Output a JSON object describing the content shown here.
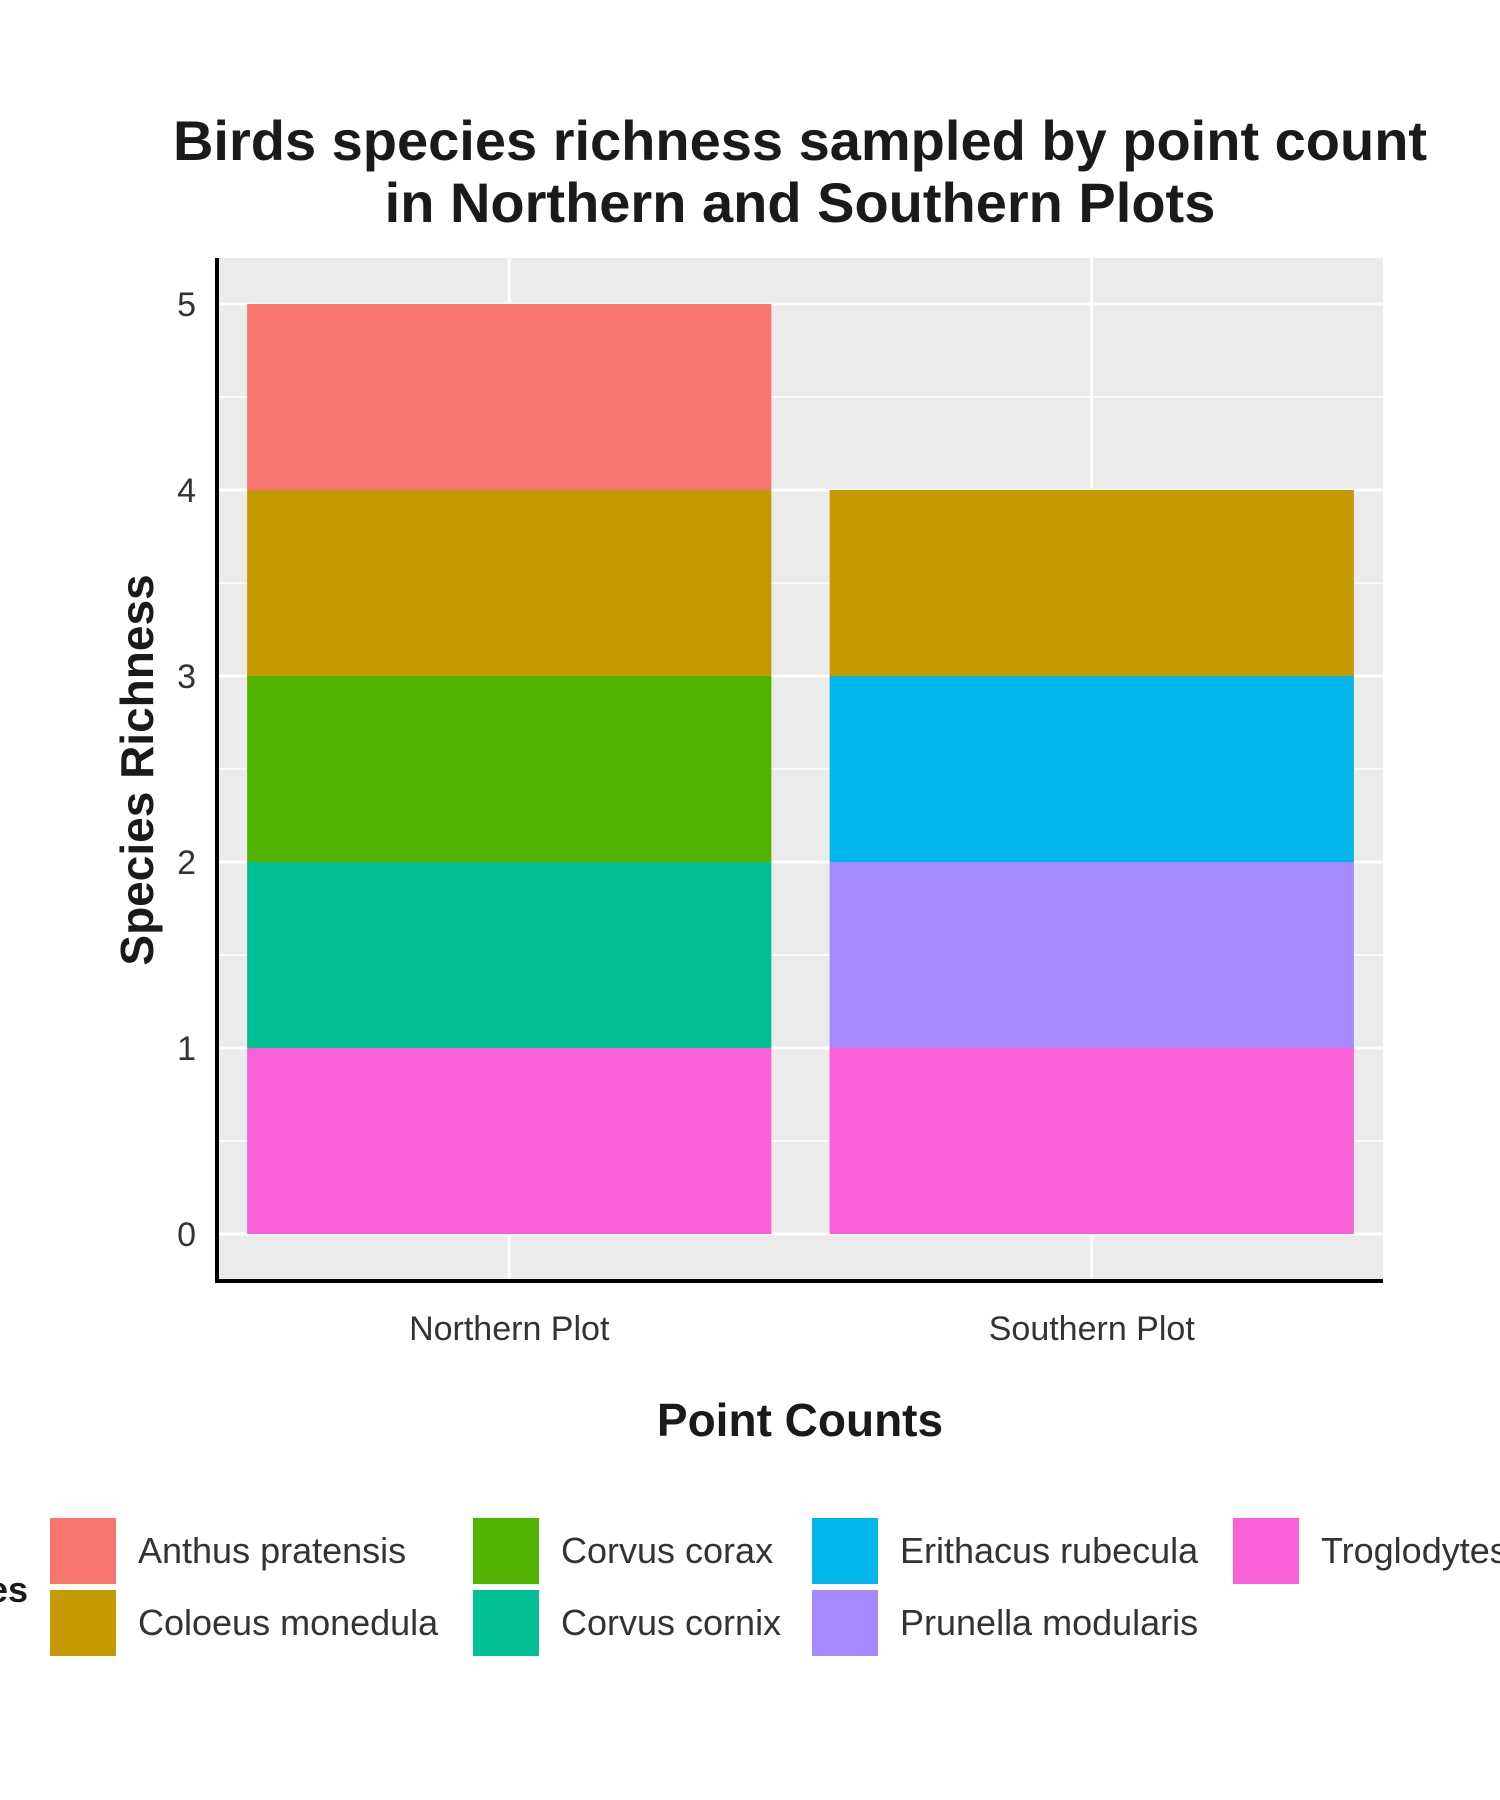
{
  "chart_data": {
    "type": "bar",
    "stacked": true,
    "title_line1": "Birds species richness sampled by point count",
    "title_line2": "in Northern and Southern Plots",
    "xlabel": "Point Counts",
    "ylabel": "Species Richness",
    "categories": [
      "Northern Plot",
      "Southern Plot"
    ],
    "ylim": [
      0,
      5.2
    ],
    "yticks": [
      0,
      1,
      2,
      3,
      4,
      5
    ],
    "grid": true,
    "legend_position": "bottom",
    "legend_title_fragment": "es",
    "series": [
      {
        "name": "Troglodytes",
        "color": "#FB61D7",
        "values": [
          1,
          1
        ]
      },
      {
        "name": "Corvus cornix",
        "color": "#00C094",
        "values": [
          1,
          0
        ]
      },
      {
        "name": "Prunella modularis",
        "color": "#A58AFF",
        "values": [
          0,
          1
        ]
      },
      {
        "name": "Corvus corax",
        "color": "#53B400",
        "values": [
          1,
          0
        ]
      },
      {
        "name": "Erithacus rubecula",
        "color": "#00B6EB",
        "values": [
          0,
          1
        ]
      },
      {
        "name": "Coloeus monedula",
        "color": "#C49A00",
        "values": [
          1,
          1
        ]
      },
      {
        "name": "Anthus pratensis",
        "color": "#F8766D",
        "values": [
          1,
          0
        ]
      }
    ],
    "legend_order": [
      "Anthus pratensis",
      "Coloeus monedula",
      "Corvus corax",
      "Corvus cornix",
      "Erithacus rubecula",
      "Prunella modularis",
      "Troglodytes"
    ]
  }
}
